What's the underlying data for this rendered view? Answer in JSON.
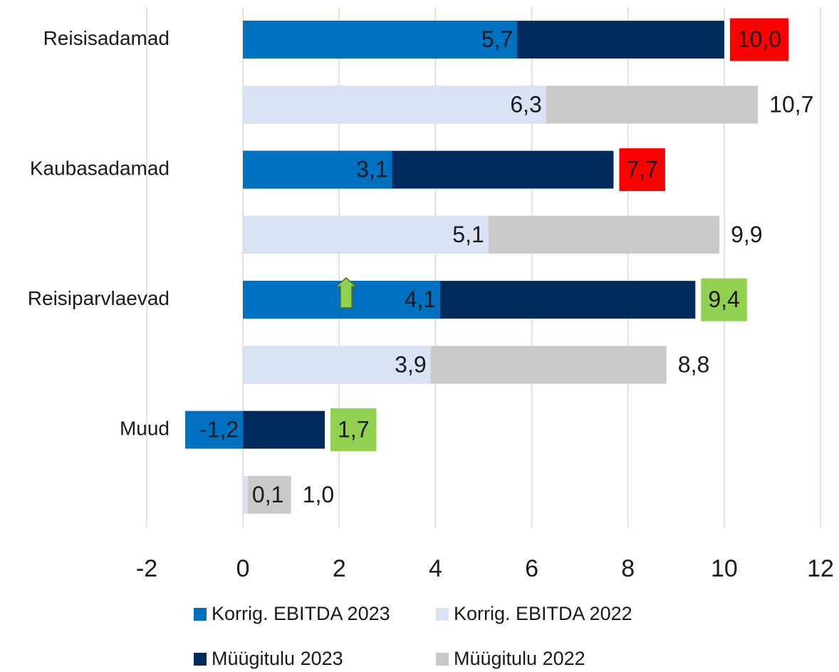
{
  "chart_data": {
    "type": "overlap_hbar",
    "categories": [
      "Reisisadamad",
      "Kaubasadamad",
      "Reisiparvlaevad",
      "Muud"
    ],
    "series": [
      {
        "name": "Korrig. EBITDA 2023",
        "color": "#0070c0",
        "row": 0,
        "label_color": "#ffffff",
        "values": [
          5.7,
          3.1,
          4.1,
          -1.2
        ],
        "value_labels": [
          "5,7",
          "3,1",
          "4,1",
          "-1,2"
        ]
      },
      {
        "name": "Korrig. EBITDA 2022",
        "color": "#dae3f3",
        "row": 1,
        "label_color": "#1a1a1a",
        "values": [
          6.3,
          5.1,
          3.9,
          0.1
        ],
        "value_labels": [
          "6,3",
          "5,1",
          "3,9",
          "0,1"
        ]
      },
      {
        "name": "Müügitulu 2023",
        "color": "#002b5c",
        "row": 0,
        "label_color": "#1a1a1a",
        "label_backgrounds": [
          "#ff0000",
          "#ff0000",
          "#92d050",
          "#92d050"
        ],
        "values": [
          10.0,
          7.7,
          9.4,
          1.7
        ],
        "value_labels": [
          "10,0",
          "7,7",
          "9,4",
          "1,7"
        ]
      },
      {
        "name": "Müügitulu 2022",
        "color": "#c9c9c9",
        "row": 1,
        "label_color": "#1a1a1a",
        "values": [
          10.7,
          9.9,
          8.8,
          1.0
        ],
        "value_labels": [
          "10,7",
          "9,9",
          "8,8",
          "1,0"
        ]
      }
    ],
    "xlim": [
      -2,
      12
    ],
    "xticks": [
      -2,
      0,
      2,
      4,
      6,
      8,
      10,
      12
    ],
    "grid": true
  }
}
